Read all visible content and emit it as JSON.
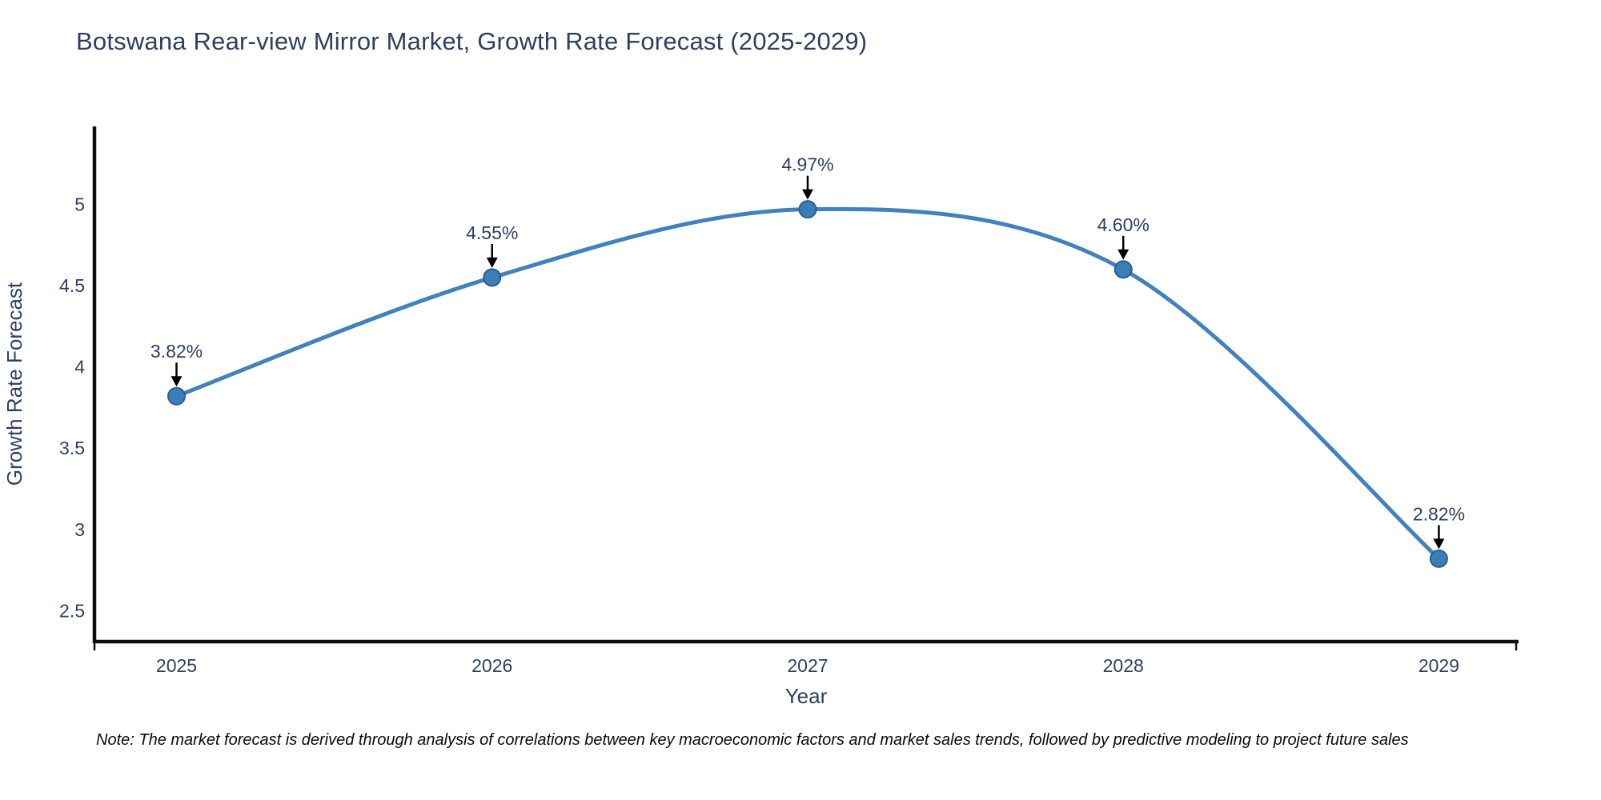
{
  "note": "Note: The market forecast is derived through analysis of correlations between key macroeconomic factors and market sales trends, followed by predictive modeling to project future sales",
  "colors": {
    "line": "#4181bd",
    "marker_fill": "#3c7cb8",
    "marker_edge": "#2a5f93",
    "chart_text": "#2e3f5f",
    "axis_line": "#0d0d0d",
    "annotation_arrow": "#000000",
    "background": "#ffffff"
  },
  "chart_data": {
    "type": "line",
    "title": "Botswana Rear-view Mirror Market, Growth Rate Forecast (2025-2029)",
    "x": [
      2025,
      2026,
      2027,
      2028,
      2029
    ],
    "series": [
      {
        "name": "Growth Rate Forecast",
        "values": [
          3.82,
          4.55,
          4.97,
          4.6,
          2.82
        ]
      }
    ],
    "point_labels": [
      "3.82%",
      "4.55%",
      "4.97%",
      "4.60%",
      "2.82%"
    ],
    "xlabel": "Year",
    "ylabel": "Growth Rate Forecast",
    "xticks": [
      "2025",
      "2026",
      "2027",
      "2028",
      "2029"
    ],
    "yticks": [
      "2.5",
      "3",
      "3.5",
      "4",
      "4.5",
      "5"
    ],
    "xlim": [
      2024.74,
      2029.25
    ],
    "ylim": [
      2.31,
      5.48
    ],
    "grid": false,
    "legend": "none",
    "line_shape": "spline",
    "markers": true,
    "annotations": true
  }
}
